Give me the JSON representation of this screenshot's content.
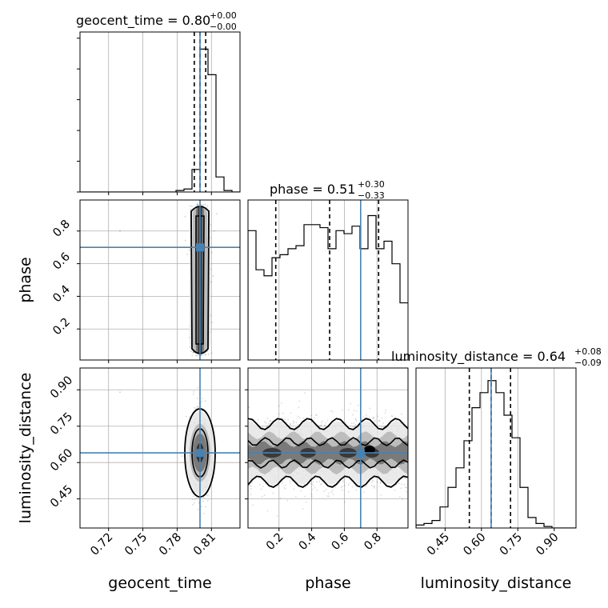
{
  "colors": {
    "truth": "#4682b4",
    "hist": "#000000",
    "grid": "#b0b0b0",
    "quantile": "#000000"
  },
  "labels": {
    "geocent_time": "geocent_time",
    "phase": "phase",
    "luminosity_distance": "luminosity_distance"
  },
  "titles": {
    "geocent_time": {
      "main": "geocent_time = 0.80",
      "sup": "+0.00",
      "sub": "−0.00"
    },
    "phase": {
      "main": "phase = 0.51",
      "sup": "+0.30",
      "sub": "−0.33"
    },
    "luminosity_distance": {
      "main": "luminosity_distance = 0.64",
      "sup": "+0.08",
      "sub": "−0.09"
    }
  },
  "chart_data": {
    "type": "corner",
    "parameters": [
      "geocent_time",
      "phase",
      "luminosity_distance"
    ],
    "truths": {
      "geocent_time": 0.8,
      "phase": 0.7,
      "luminosity_distance": 0.64
    },
    "medians": {
      "geocent_time": 0.8,
      "phase": 0.51,
      "luminosity_distance": 0.64
    },
    "quantiles": {
      "geocent_time": [
        0.795,
        0.8,
        0.805
      ],
      "phase": [
        0.18,
        0.51,
        0.81
      ],
      "luminosity_distance": [
        0.55,
        0.64,
        0.72
      ]
    },
    "ranges": {
      "geocent_time": [
        0.695,
        0.835
      ],
      "phase": [
        0.01,
        0.99
      ],
      "luminosity_distance": [
        0.33,
        0.99
      ]
    },
    "ticks": {
      "geocent_time": {
        "values": [
          0.72,
          0.75,
          0.78,
          0.81
        ],
        "labels": [
          "0.72",
          "0.75",
          "0.78",
          "0.81"
        ]
      },
      "phase": {
        "values": [
          0.2,
          0.4,
          0.6,
          0.8
        ],
        "labels": [
          "0.2",
          "0.4",
          "0.6",
          "0.8"
        ]
      },
      "luminosity_distance": {
        "values": [
          0.45,
          0.6,
          0.75,
          0.9
        ],
        "labels": [
          "0.45",
          "0.60",
          "0.75",
          "0.90"
        ]
      }
    },
    "histograms": {
      "geocent_time": {
        "edges": [
          0.695,
          0.702,
          0.709,
          0.716,
          0.723,
          0.73,
          0.737,
          0.744,
          0.751,
          0.758,
          0.765,
          0.772,
          0.779,
          0.786,
          0.793,
          0.8,
          0.807,
          0.814,
          0.821,
          0.828,
          0.835
        ],
        "counts": [
          0,
          0,
          0,
          0,
          0,
          0,
          0,
          0,
          0,
          0,
          0,
          0,
          0.01,
          0.02,
          0.15,
          0.95,
          0.78,
          0.1,
          0.01,
          0
        ]
      },
      "phase": {
        "edges": [
          0.01,
          0.059,
          0.108,
          0.157,
          0.206,
          0.255,
          0.304,
          0.353,
          0.402,
          0.451,
          0.5,
          0.549,
          0.598,
          0.647,
          0.696,
          0.745,
          0.794,
          0.843,
          0.892,
          0.941,
          0.99
        ],
        "counts": [
          0.86,
          0.6,
          0.56,
          0.68,
          0.7,
          0.74,
          0.76,
          0.9,
          0.9,
          0.88,
          0.74,
          0.86,
          0.84,
          0.89,
          0.74,
          0.96,
          0.74,
          0.79,
          0.64,
          0.38
        ]
      },
      "luminosity_distance": {
        "edges": [
          0.33,
          0.363,
          0.396,
          0.429,
          0.462,
          0.495,
          0.528,
          0.561,
          0.594,
          0.627,
          0.66,
          0.693,
          0.726,
          0.759,
          0.792,
          0.825,
          0.858,
          0.891,
          0.924,
          0.957,
          0.99
        ],
        "counts": [
          0.02,
          0.03,
          0.05,
          0.14,
          0.27,
          0.4,
          0.58,
          0.8,
          0.9,
          0.98,
          0.9,
          0.75,
          0.6,
          0.27,
          0.07,
          0.03,
          0.01,
          0,
          0,
          0
        ]
      }
    },
    "contours_2d": {
      "phase_vs_geocent_time": {
        "x_center": 0.8,
        "x_width": 0.004,
        "y_range": [
          0.04,
          0.98
        ]
      },
      "luminosity_distance_vs_geocent_time": {
        "x_center": 0.8,
        "y_center": 0.64,
        "x_width": 0.004,
        "y_width": 0.1
      },
      "luminosity_distance_vs_phase": {
        "y_center": 0.64,
        "y_width": 0.07,
        "x_range": [
          0.01,
          0.99
        ]
      }
    }
  }
}
